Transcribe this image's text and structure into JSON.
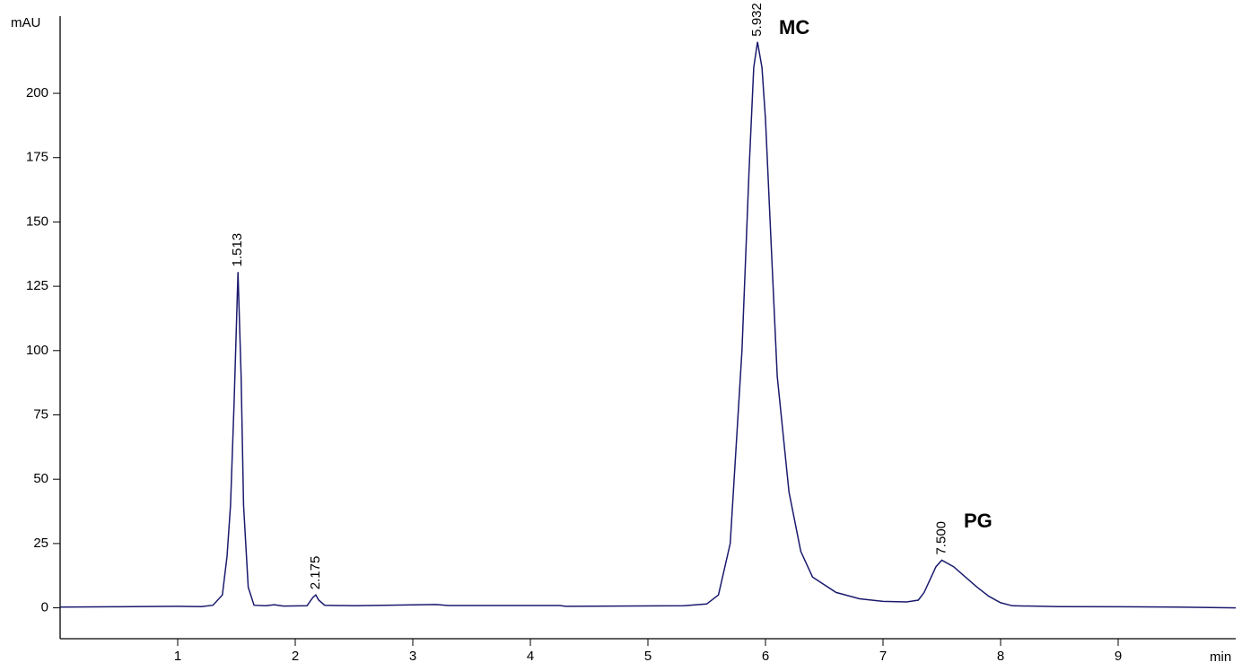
{
  "chart_data": {
    "type": "line",
    "y_label": "mAU",
    "x_label": "min",
    "xlim": [
      0,
      10
    ],
    "ylim": [
      -12,
      230
    ],
    "xticks": [
      1,
      2,
      3,
      4,
      5,
      6,
      7,
      8,
      9
    ],
    "yticks": [
      0,
      25,
      50,
      75,
      100,
      125,
      150,
      175,
      200
    ],
    "series": [
      {
        "color": "#1a1a6e",
        "x": [
          0,
          0.5,
          1.0,
          1.2,
          1.3,
          1.38,
          1.42,
          1.45,
          1.48,
          1.513,
          1.54,
          1.56,
          1.6,
          1.65,
          1.75,
          1.82,
          1.9,
          2.1,
          2.15,
          2.175,
          2.2,
          2.25,
          2.5,
          3.2,
          3.3,
          4.25,
          4.3,
          5.3,
          5.5,
          5.6,
          5.7,
          5.8,
          5.86,
          5.9,
          5.932,
          5.97,
          6.0,
          6.05,
          6.1,
          6.2,
          6.3,
          6.4,
          6.6,
          6.8,
          7.0,
          7.2,
          7.3,
          7.35,
          7.4,
          7.45,
          7.5,
          7.6,
          7.7,
          7.8,
          7.9,
          8.0,
          8.1,
          8.5,
          9.0,
          9.5,
          10
        ],
        "values": [
          0.3,
          0.4,
          0.6,
          0.5,
          1,
          5,
          20,
          40,
          80,
          130.5,
          90,
          40,
          8,
          1,
          0.8,
          1.2,
          0.7,
          0.8,
          4,
          5,
          3,
          1,
          0.8,
          1.3,
          0.9,
          0.9,
          0.6,
          0.8,
          1.5,
          5,
          25,
          100,
          170,
          210,
          220,
          210,
          190,
          140,
          90,
          45,
          22,
          12,
          6,
          3.5,
          2.5,
          2.3,
          3,
          6,
          11,
          16,
          18.5,
          16,
          12,
          8,
          4.5,
          2,
          0.8,
          0.5,
          0.4,
          0.3,
          0
        ]
      }
    ],
    "peaks": [
      {
        "value": 1.513,
        "label": "1.513"
      },
      {
        "value": 2.175,
        "label": "2.175"
      },
      {
        "value": 5.932,
        "label": "5.932"
      },
      {
        "value": 7.5,
        "label": "7.500"
      }
    ],
    "annotations": [
      "MC",
      "PG"
    ]
  }
}
